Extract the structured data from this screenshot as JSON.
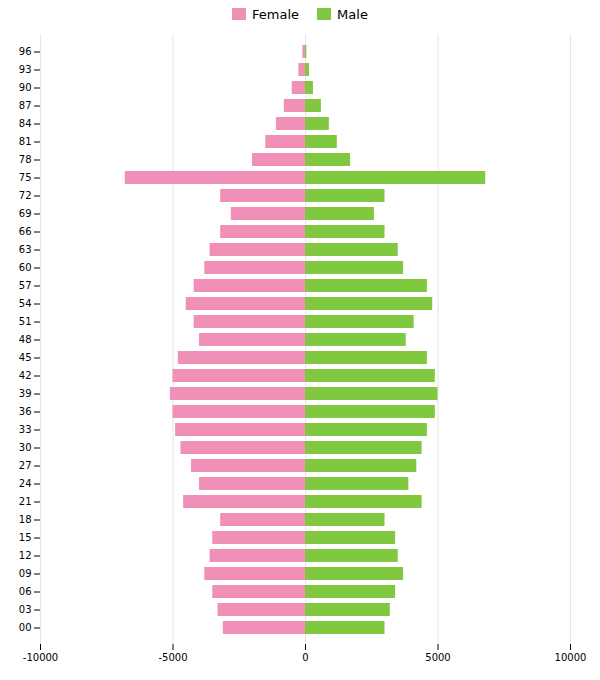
{
  "chart_data": {
    "type": "bar",
    "orientation": "horizontal",
    "categories": [
      "00",
      "03",
      "06",
      "09",
      "12",
      "15",
      "18",
      "21",
      "24",
      "27",
      "30",
      "33",
      "36",
      "39",
      "42",
      "45",
      "48",
      "51",
      "54",
      "57",
      "60",
      "63",
      "66",
      "69",
      "72",
      "75",
      "78",
      "81",
      "84",
      "87",
      "90",
      "93",
      "96"
    ],
    "series": [
      {
        "name": "Female",
        "color": "#f090b8",
        "values": [
          -3100,
          -3300,
          -3500,
          -3800,
          -3600,
          -3500,
          -3200,
          -4600,
          -4000,
          -4300,
          -4700,
          -4900,
          -5000,
          -5100,
          -5000,
          -4800,
          -4000,
          -4200,
          -4500,
          -4200,
          -3800,
          -3600,
          -3200,
          -2800,
          -3200,
          -6800,
          -2000,
          -1500,
          -1100,
          -800,
          -500,
          -250,
          -100
        ]
      },
      {
        "name": "Male",
        "color": "#80c840",
        "values": [
          3000,
          3200,
          3400,
          3700,
          3500,
          3400,
          3000,
          4400,
          3900,
          4200,
          4400,
          4600,
          4900,
          5000,
          4900,
          4600,
          3800,
          4100,
          4800,
          4600,
          3700,
          3500,
          3000,
          2600,
          3000,
          6800,
          1700,
          1200,
          900,
          600,
          300,
          150,
          50
        ]
      }
    ],
    "xlim": [
      -10000,
      10000
    ],
    "xticks": [
      -10000,
      -5000,
      0,
      5000,
      10000
    ],
    "grid": true,
    "legend": "top"
  }
}
